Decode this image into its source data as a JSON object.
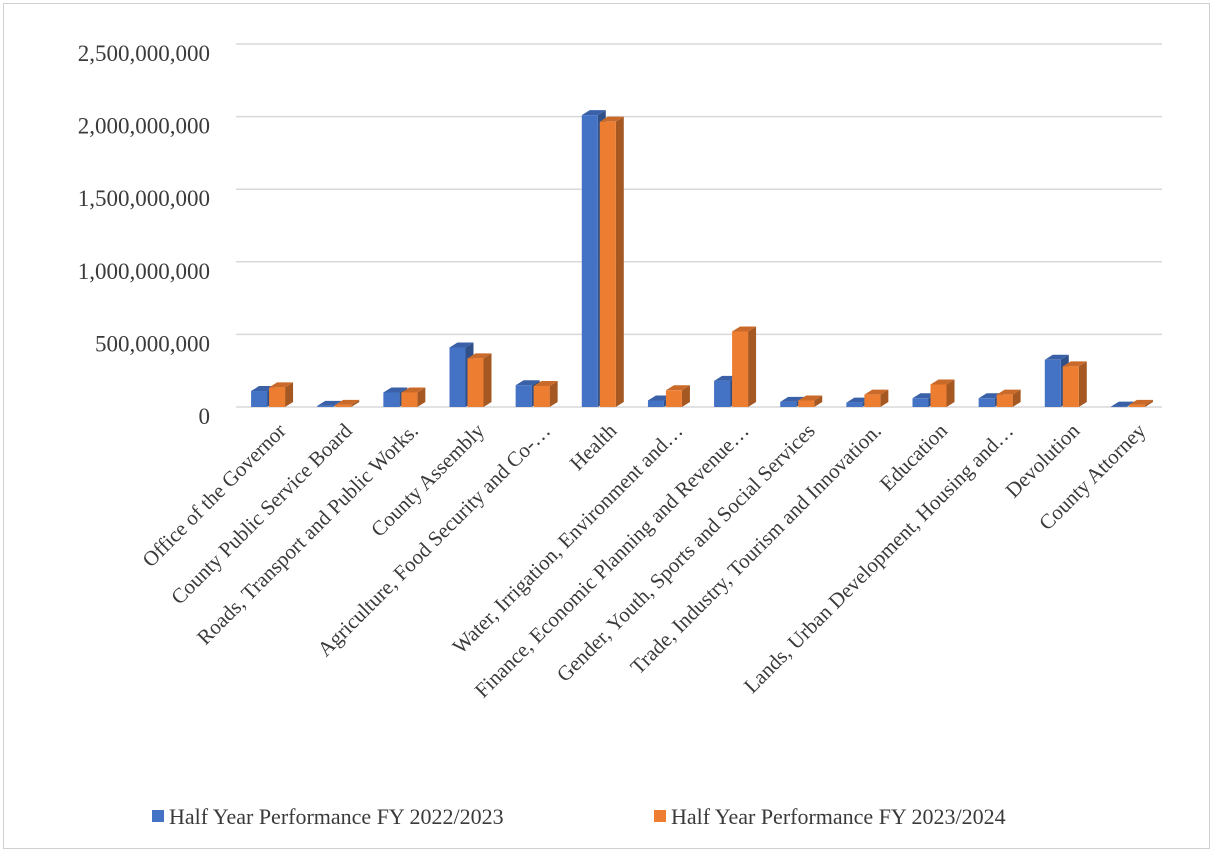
{
  "chart_data": {
    "type": "bar",
    "title": "",
    "xlabel": "",
    "ylabel": "",
    "ylim": [
      0,
      2500000000
    ],
    "yticks": [
      0,
      500000000,
      1000000000,
      1500000000,
      2000000000,
      2500000000
    ],
    "ytick_labels": [
      "0",
      "500,000,000",
      "1,000,000,000",
      "1,500,000,000",
      "2,000,000,000",
      "2,500,000,000"
    ],
    "grid": true,
    "legend_position": "bottom",
    "categories": [
      "Office of the Governor",
      "County Public Service Board",
      "Roads, Transport and Public Works.",
      "County Assembly",
      "Agriculture, Food Security and Co-…",
      "Health",
      "Water, Irrigation, Environment and…",
      "Finance, Economic Planning and Revenue…",
      "Gender, Youth, Sports and Social Services",
      "Trade, Industry, Tourism and Innovation.",
      "Education",
      "Lands, Urban Development, Housing and…",
      "Devolution",
      "County Attorney"
    ],
    "series": [
      {
        "name": "Half Year Performance FY 2022/2023",
        "color": "#4472C4",
        "values": [
          110000000,
          8000000,
          100000000,
          410000000,
          150000000,
          2010000000,
          45000000,
          180000000,
          35000000,
          30000000,
          60000000,
          60000000,
          325000000,
          3000000
        ]
      },
      {
        "name": "Half Year Performance FY 2023/2024",
        "color": "#ED7D31",
        "values": [
          135000000,
          15000000,
          100000000,
          335000000,
          145000000,
          1965000000,
          115000000,
          520000000,
          45000000,
          85000000,
          155000000,
          85000000,
          280000000,
          15000000
        ]
      }
    ]
  }
}
